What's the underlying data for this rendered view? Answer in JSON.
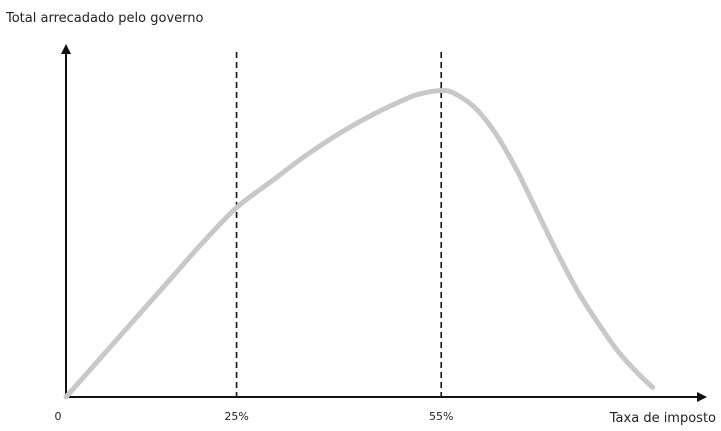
{
  "chart_data": {
    "type": "line",
    "title": "",
    "ylabel": "Total arrecadado pelo governo",
    "xlabel": "Taxa de imposto",
    "x_ticks": [
      {
        "value": 0,
        "label": "0"
      },
      {
        "value": 25,
        "label": "25%"
      },
      {
        "value": 55,
        "label": "55%"
      }
    ],
    "reference_lines": [
      25,
      55
    ],
    "grid": false,
    "legend": "none",
    "y_ticks": [],
    "xlim": [
      0,
      90
    ],
    "ylim": [
      0,
      100
    ],
    "series": [
      {
        "color": "#c8c8c8",
        "x": [
          0,
          5,
          10,
          15,
          20,
          25,
          30,
          35,
          40,
          45,
          50,
          52,
          55,
          57,
          60,
          63,
          66,
          69,
          72,
          75,
          78,
          81,
          84,
          86
        ],
        "y": [
          0,
          12,
          24,
          36,
          48,
          59,
          67,
          75,
          82,
          88,
          93,
          94.5,
          95.5,
          94.5,
          90,
          82,
          71,
          58,
          45,
          33,
          23,
          14,
          7,
          3
        ]
      }
    ]
  },
  "colors": {
    "axis": "#111111",
    "curve": "#c8c8c8",
    "reference": "#111111"
  }
}
